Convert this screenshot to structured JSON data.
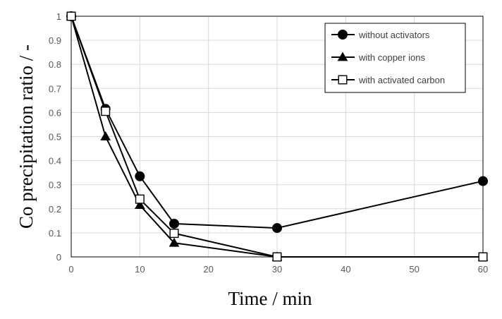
{
  "chart_data": {
    "type": "line",
    "xlabel": "Time / min",
    "ylabel": "Co precipitation ratio / -",
    "xlim": [
      0,
      60
    ],
    "ylim": [
      0,
      1
    ],
    "xticks": [
      "0",
      "10",
      "20",
      "30",
      "40",
      "50",
      "60"
    ],
    "yticks": [
      "0",
      "0.1",
      "0.2",
      "0.3",
      "0.4",
      "0.5",
      "0.6",
      "0.7",
      "0.8",
      "0.9",
      "1"
    ],
    "grid": true,
    "legend_position": "top-right",
    "series": [
      {
        "name": "without activators",
        "marker": "filled-circle",
        "x": [
          0,
          5,
          10,
          15,
          30,
          60
        ],
        "y": [
          1.0,
          0.615,
          0.335,
          0.138,
          0.12,
          0.315
        ]
      },
      {
        "name": "with copper ions",
        "marker": "filled-triangle",
        "x": [
          0,
          5,
          10,
          15,
          30,
          60
        ],
        "y": [
          1.0,
          0.5,
          0.215,
          0.058,
          0.0,
          0.0
        ]
      },
      {
        "name": "with activated carbon",
        "marker": "open-square",
        "x": [
          0,
          5,
          10,
          15,
          30,
          60
        ],
        "y": [
          1.0,
          0.605,
          0.24,
          0.098,
          0.0,
          0.0
        ]
      }
    ],
    "colors": {
      "line": "#000000",
      "grid": "#d9d9d9",
      "tick_text": "#595959"
    }
  }
}
